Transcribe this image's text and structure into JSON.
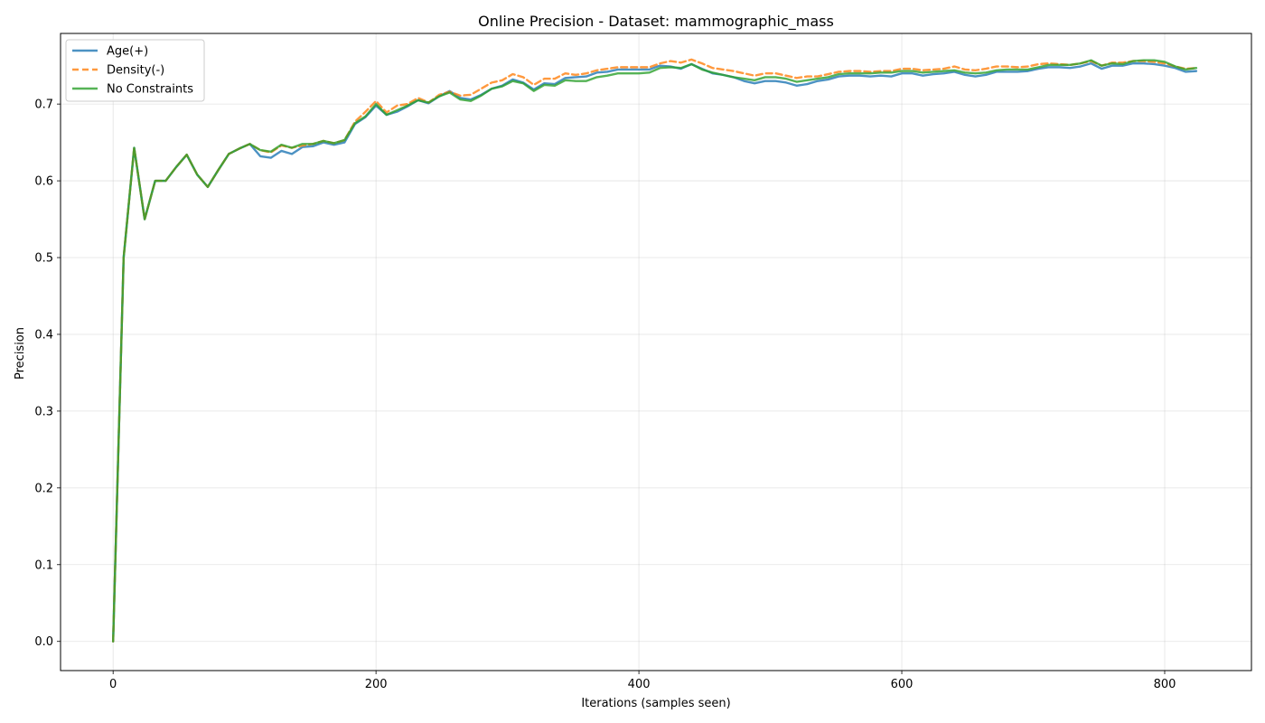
{
  "chart_data": {
    "type": "line",
    "title": "Online Precision - Dataset: mammographic_mass",
    "xlabel": "Iterations (samples seen)",
    "ylabel": "Precision",
    "xlim": [
      -40,
      866
    ],
    "ylim": [
      -0.038,
      0.792
    ],
    "xticks": [
      0,
      200,
      400,
      600,
      800
    ],
    "yticks": [
      0.0,
      0.1,
      0.2,
      0.3,
      0.4,
      0.5,
      0.6,
      0.7
    ],
    "grid": true,
    "legend_position": "upper left",
    "x": [
      0,
      8,
      16,
      24,
      32,
      40,
      48,
      56,
      64,
      72,
      80,
      88,
      96,
      104,
      112,
      120,
      128,
      136,
      144,
      152,
      160,
      168,
      176,
      184,
      192,
      200,
      208,
      216,
      224,
      232,
      240,
      248,
      256,
      264,
      272,
      280,
      288,
      296,
      304,
      312,
      320,
      328,
      336,
      344,
      352,
      360,
      368,
      376,
      384,
      392,
      400,
      408,
      416,
      424,
      432,
      440,
      448,
      456,
      464,
      472,
      480,
      488,
      496,
      504,
      512,
      520,
      528,
      536,
      544,
      552,
      560,
      568,
      576,
      584,
      592,
      600,
      608,
      616,
      624,
      632,
      640,
      648,
      656,
      664,
      672,
      680,
      688,
      696,
      704,
      712,
      720,
      728,
      736,
      744,
      752,
      760,
      768,
      776,
      784,
      792,
      800,
      808,
      816,
      824
    ],
    "series": [
      {
        "name": "Age(+)",
        "color": "#1f77b4",
        "dash": "solid",
        "values": [
          0.0,
          0.5,
          0.643,
          0.55,
          0.6,
          0.6,
          0.618,
          0.634,
          0.608,
          0.592,
          0.614,
          0.635,
          0.642,
          0.648,
          0.632,
          0.63,
          0.639,
          0.635,
          0.644,
          0.645,
          0.65,
          0.647,
          0.65,
          0.674,
          0.683,
          0.698,
          0.686,
          0.69,
          0.697,
          0.705,
          0.701,
          0.71,
          0.717,
          0.708,
          0.706,
          0.712,
          0.72,
          0.724,
          0.732,
          0.728,
          0.719,
          0.727,
          0.726,
          0.734,
          0.735,
          0.736,
          0.741,
          0.742,
          0.745,
          0.745,
          0.745,
          0.745,
          0.75,
          0.749,
          0.746,
          0.752,
          0.746,
          0.74,
          0.738,
          0.735,
          0.73,
          0.727,
          0.73,
          0.73,
          0.728,
          0.724,
          0.726,
          0.73,
          0.732,
          0.736,
          0.737,
          0.737,
          0.736,
          0.737,
          0.736,
          0.74,
          0.74,
          0.737,
          0.739,
          0.74,
          0.742,
          0.738,
          0.736,
          0.738,
          0.742,
          0.742,
          0.742,
          0.743,
          0.746,
          0.748,
          0.748,
          0.747,
          0.749,
          0.753,
          0.746,
          0.75,
          0.75,
          0.753,
          0.753,
          0.752,
          0.75,
          0.747,
          0.742,
          0.743
        ]
      },
      {
        "name": "Density(-)",
        "color": "#ff7f0e",
        "dash": "dashed",
        "values": [
          0.0,
          0.5,
          0.643,
          0.55,
          0.6,
          0.6,
          0.618,
          0.634,
          0.608,
          0.592,
          0.614,
          0.635,
          0.642,
          0.648,
          0.64,
          0.637,
          0.646,
          0.643,
          0.646,
          0.648,
          0.652,
          0.649,
          0.653,
          0.677,
          0.69,
          0.704,
          0.689,
          0.698,
          0.7,
          0.708,
          0.702,
          0.712,
          0.716,
          0.711,
          0.712,
          0.72,
          0.728,
          0.731,
          0.739,
          0.735,
          0.725,
          0.733,
          0.733,
          0.74,
          0.738,
          0.74,
          0.744,
          0.746,
          0.748,
          0.748,
          0.748,
          0.748,
          0.753,
          0.756,
          0.754,
          0.758,
          0.753,
          0.747,
          0.745,
          0.743,
          0.74,
          0.737,
          0.74,
          0.74,
          0.737,
          0.734,
          0.736,
          0.736,
          0.739,
          0.742,
          0.743,
          0.743,
          0.742,
          0.743,
          0.743,
          0.746,
          0.746,
          0.744,
          0.745,
          0.746,
          0.749,
          0.745,
          0.744,
          0.746,
          0.749,
          0.749,
          0.748,
          0.749,
          0.752,
          0.753,
          0.752,
          0.751,
          0.753,
          0.756,
          0.75,
          0.754,
          0.754,
          0.756,
          0.756,
          0.755,
          0.753,
          0.749,
          0.746,
          0.747
        ]
      },
      {
        "name": "No Constraints",
        "color": "#2ca02c",
        "dash": "solid",
        "values": [
          0.0,
          0.5,
          0.643,
          0.55,
          0.6,
          0.6,
          0.618,
          0.634,
          0.608,
          0.592,
          0.614,
          0.635,
          0.642,
          0.648,
          0.64,
          0.638,
          0.647,
          0.643,
          0.648,
          0.648,
          0.652,
          0.649,
          0.653,
          0.675,
          0.684,
          0.7,
          0.686,
          0.692,
          0.698,
          0.705,
          0.702,
          0.71,
          0.715,
          0.706,
          0.704,
          0.711,
          0.72,
          0.723,
          0.73,
          0.727,
          0.717,
          0.725,
          0.724,
          0.731,
          0.73,
          0.73,
          0.735,
          0.737,
          0.74,
          0.74,
          0.74,
          0.741,
          0.747,
          0.748,
          0.747,
          0.752,
          0.745,
          0.741,
          0.738,
          0.735,
          0.733,
          0.731,
          0.735,
          0.735,
          0.733,
          0.729,
          0.731,
          0.733,
          0.735,
          0.739,
          0.74,
          0.74,
          0.74,
          0.741,
          0.741,
          0.743,
          0.743,
          0.741,
          0.742,
          0.743,
          0.744,
          0.741,
          0.74,
          0.741,
          0.744,
          0.745,
          0.745,
          0.745,
          0.748,
          0.751,
          0.751,
          0.751,
          0.753,
          0.757,
          0.75,
          0.753,
          0.752,
          0.756,
          0.757,
          0.757,
          0.755,
          0.749,
          0.745,
          0.747
        ]
      }
    ]
  }
}
